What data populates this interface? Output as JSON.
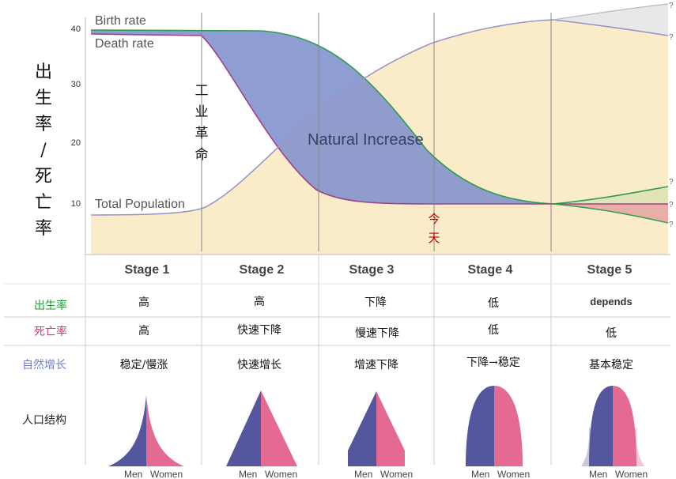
{
  "y_axis_title": [
    "出",
    "生",
    "率",
    "/",
    "死",
    "亡",
    "率"
  ],
  "y_ticks": [
    "40",
    "30",
    "20",
    "10"
  ],
  "curve_labels": {
    "birth": "Birth rate",
    "death": "Death rate",
    "population": "Total Population",
    "natural": "Natural Increase"
  },
  "annotations": {
    "industrial": [
      "工",
      "业",
      "革",
      "命"
    ],
    "today": [
      "今",
      "天"
    ],
    "question": "?"
  },
  "stages": [
    "Stage 1",
    "Stage 2",
    "Stage 3",
    "Stage 4",
    "Stage 5"
  ],
  "rows": [
    {
      "label": "出生率",
      "color": "#1f9e3a",
      "values": [
        "高",
        "高",
        "下降",
        "低",
        "depends"
      ]
    },
    {
      "label": "死亡率",
      "color": "#d0347a",
      "values": [
        "高",
        "快速下降",
        "慢速下降",
        "低",
        "低"
      ]
    },
    {
      "label": "自然增长",
      "color": "#6f7fcf",
      "values": [
        "稳定/慢涨",
        "快速增长",
        "增速下降",
        "下降→稳定",
        "基本稳定"
      ]
    },
    {
      "label": "人口结构",
      "color": "#222222",
      "values": [
        "",
        "",
        "",
        "",
        ""
      ]
    }
  ],
  "pyramid_labels": {
    "men": "Men",
    "women": "Women"
  },
  "colors": {
    "birth": "#2e9e4f",
    "death": "#a0408a",
    "natural": "#8091cc",
    "population_fill": "#fbecc9",
    "population_line": "#9a93c8",
    "men": "#55579e",
    "women": "#e46a92",
    "today": "#c00000"
  }
}
